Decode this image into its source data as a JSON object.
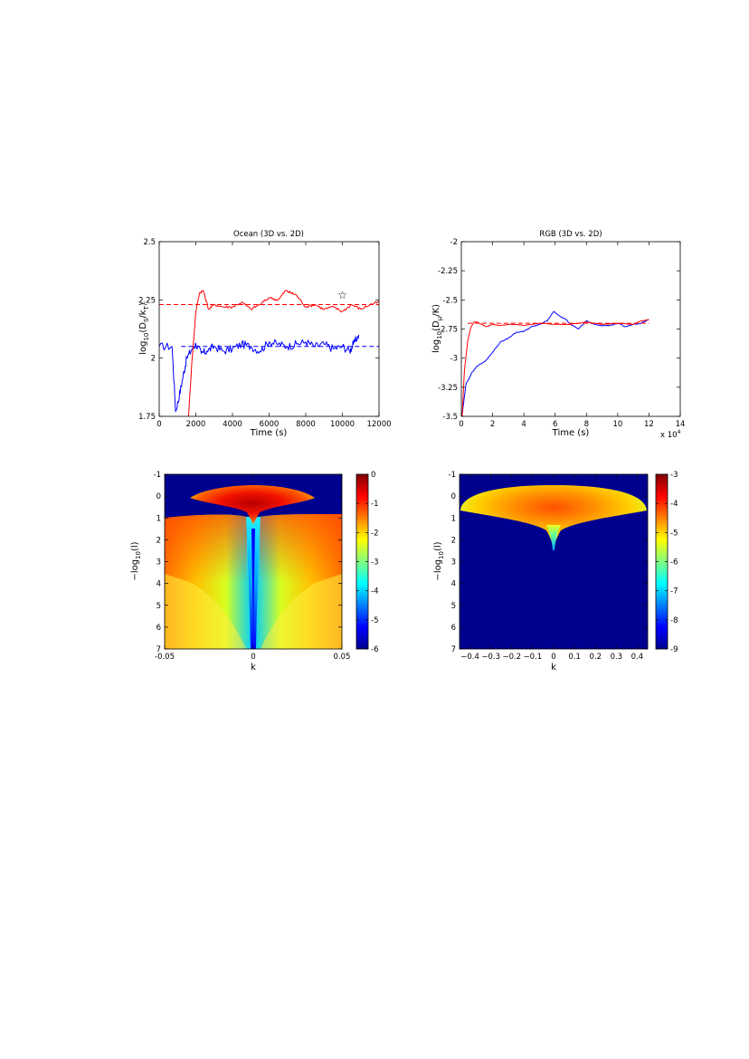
{
  "chart_data": [
    {
      "type": "line",
      "title": "Ocean (3D vs. 2D)",
      "xlabel": "Time (s)",
      "ylabel_parts": [
        "log",
        "10",
        "(D",
        "S",
        "/k",
        "T",
        ")"
      ],
      "xlim": [
        0,
        12000
      ],
      "ylim": [
        1.75,
        2.5
      ],
      "xticks": [
        0,
        2000,
        4000,
        6000,
        8000,
        10000,
        12000
      ],
      "xtick_labels": [
        "0",
        "2000",
        "4000",
        "6000",
        "8000",
        "10000",
        "12000"
      ],
      "yticks": [
        1.75,
        2,
        2.25,
        2.5
      ],
      "ytick_labels": [
        "1.75",
        "2",
        "2.25",
        "2.5"
      ],
      "grid": false,
      "annotation": {
        "symbol": "☆",
        "x": 10000,
        "y": 2.27
      },
      "series": [
        {
          "color": "#0000ff",
          "style": "solid",
          "noise": 0.035,
          "x": [
            0,
            700,
            900,
            1100,
            1300,
            1500,
            1800,
            2000,
            2300,
            2600,
            3000,
            3500,
            4000,
            4500,
            5000,
            5500,
            6000,
            6500,
            7000,
            7500,
            8000,
            8500,
            9000,
            9500,
            10000,
            10400,
            10600,
            10900
          ],
          "y": [
            2.05,
            2.05,
            1.77,
            1.84,
            1.92,
            2.0,
            2.04,
            2.06,
            2.02,
            2.03,
            2.05,
            2.03,
            2.04,
            2.06,
            2.05,
            2.03,
            2.07,
            2.06,
            2.05,
            2.06,
            2.07,
            2.05,
            2.06,
            2.04,
            2.05,
            2.03,
            2.06,
            2.1
          ]
        },
        {
          "color": "#ff0000",
          "style": "solid",
          "noise": 0.012,
          "x": [
            1600,
            1800,
            2000,
            2200,
            2400,
            2700,
            3000,
            3500,
            4000,
            4500,
            5000,
            5500,
            6000,
            6500,
            6900,
            7200,
            7500,
            8000,
            8500,
            9000,
            9500,
            10000,
            10500,
            11000,
            11500,
            12000
          ],
          "y": [
            1.75,
            2.0,
            2.2,
            2.28,
            2.29,
            2.21,
            2.23,
            2.22,
            2.22,
            2.24,
            2.21,
            2.23,
            2.26,
            2.25,
            2.29,
            2.28,
            2.27,
            2.22,
            2.23,
            2.21,
            2.22,
            2.2,
            2.23,
            2.21,
            2.23,
            2.24
          ]
        },
        {
          "color": "#0000ff",
          "style": "dashed",
          "x": [
            1200,
            12000
          ],
          "y": [
            2.05,
            2.05
          ]
        },
        {
          "color": "#ff0000",
          "style": "dashed",
          "x": [
            0,
            12000
          ],
          "y": [
            2.23,
            2.23
          ]
        }
      ]
    },
    {
      "type": "line",
      "title": "RGB (3D vs. 2D)",
      "xlabel": "Time (s)",
      "ylabel_parts": [
        "log",
        "10",
        "(D",
        "μ",
        "/K)"
      ],
      "xlim": [
        0,
        14
      ],
      "ylim": [
        -3.5,
        -2
      ],
      "xticks": [
        0,
        2,
        4,
        6,
        8,
        10,
        12,
        14
      ],
      "xtick_labels": [
        "0",
        "2",
        "4",
        "6",
        "8",
        "10",
        "12",
        "14"
      ],
      "x_multiplier": "x 10",
      "x_multiplier_exp": "4",
      "yticks": [
        -3.5,
        -3.25,
        -3,
        -2.75,
        -2.5,
        -2.25,
        -2
      ],
      "ytick_labels": [
        "-3.5",
        "-3.25",
        "-3",
        "-2.75",
        "-2.5",
        "-2.25",
        "-2"
      ],
      "grid": false,
      "series": [
        {
          "color": "#0000ff",
          "style": "solid",
          "noise": 0.008,
          "x": [
            0.05,
            0.3,
            0.7,
            1.0,
            1.5,
            2.0,
            2.5,
            3.0,
            3.5,
            4.0,
            4.5,
            5.0,
            5.5,
            5.9,
            6.3,
            6.7,
            7.0,
            7.5,
            8.0,
            8.5,
            9.0,
            9.5,
            10.0,
            10.5,
            11.0,
            11.5,
            12.0
          ],
          "y": [
            -3.49,
            -3.22,
            -3.12,
            -3.07,
            -3.03,
            -2.95,
            -2.86,
            -2.83,
            -2.78,
            -2.77,
            -2.73,
            -2.71,
            -2.68,
            -2.6,
            -2.64,
            -2.67,
            -2.71,
            -2.75,
            -2.68,
            -2.71,
            -2.72,
            -2.72,
            -2.7,
            -2.73,
            -2.71,
            -2.7,
            -2.67
          ]
        },
        {
          "color": "#ff0000",
          "style": "solid",
          "noise": 0.004,
          "x": [
            0.05,
            0.2,
            0.4,
            0.6,
            0.8,
            1.0,
            1.3,
            1.6,
            2.0,
            2.5,
            3.0,
            3.5,
            4.0,
            5.0,
            6.0,
            7.0,
            8.0,
            9.0,
            10.0,
            11.0,
            11.5,
            12.0
          ],
          "y": [
            -3.5,
            -3.1,
            -2.86,
            -2.74,
            -2.69,
            -2.69,
            -2.71,
            -2.73,
            -2.71,
            -2.72,
            -2.71,
            -2.71,
            -2.72,
            -2.7,
            -2.71,
            -2.71,
            -2.69,
            -2.71,
            -2.7,
            -2.71,
            -2.68,
            -2.67
          ]
        },
        {
          "color": "#ff0000",
          "style": "dashed",
          "x": [
            0.4,
            12.0
          ],
          "y": [
            -2.7,
            -2.7
          ]
        }
      ]
    },
    {
      "type": "heatmap",
      "xlabel": "k",
      "ylabel": "−log",
      "ylabel_sub": "10",
      "ylabel_tail": "(l)",
      "xlim": [
        -0.05,
        0.05
      ],
      "ylim": [
        -1,
        7
      ],
      "xticks": [
        -0.05,
        0,
        0.05
      ],
      "xtick_labels": [
        "-0.05",
        "0",
        "0.05"
      ],
      "yticks": [
        -1,
        0,
        1,
        2,
        3,
        4,
        5,
        6,
        7
      ],
      "ytick_labels": [
        "-1",
        "0",
        "1",
        "2",
        "3",
        "4",
        "5",
        "6",
        "7"
      ],
      "colorbar": {
        "min": -6,
        "max": 0,
        "ticks": [
          0,
          -1,
          -2,
          -3,
          -4,
          -5,
          -6
        ],
        "tick_labels": [
          "0",
          "-1",
          "-2",
          "-3",
          "-4",
          "-5",
          "-6"
        ]
      }
    },
    {
      "type": "heatmap",
      "xlabel": "k",
      "ylabel": "−log",
      "ylabel_sub": "10",
      "ylabel_tail": "(l)",
      "xlim": [
        -0.45,
        0.45
      ],
      "ylim": [
        -1,
        7
      ],
      "xticks": [
        -0.4,
        -0.3,
        -0.2,
        -0.1,
        0,
        0.1,
        0.2,
        0.3,
        0.4
      ],
      "xtick_labels": [
        "−0.4",
        "−0.3",
        "−0.2",
        "−0.1",
        "0",
        "0.1",
        "0.2",
        "0.3",
        "0.4"
      ],
      "yticks": [
        -1,
        0,
        1,
        2,
        3,
        4,
        5,
        6,
        7
      ],
      "ytick_labels": [
        "-1",
        "0",
        "1",
        "2",
        "3",
        "4",
        "5",
        "6",
        "7"
      ],
      "colorbar": {
        "min": -9,
        "max": -3,
        "ticks": [
          -3,
          -4,
          -5,
          -6,
          -7,
          -8,
          -9
        ],
        "tick_labels": [
          "-3",
          "-4",
          "-5",
          "-6",
          "-7",
          "-8",
          "-9"
        ]
      }
    }
  ]
}
